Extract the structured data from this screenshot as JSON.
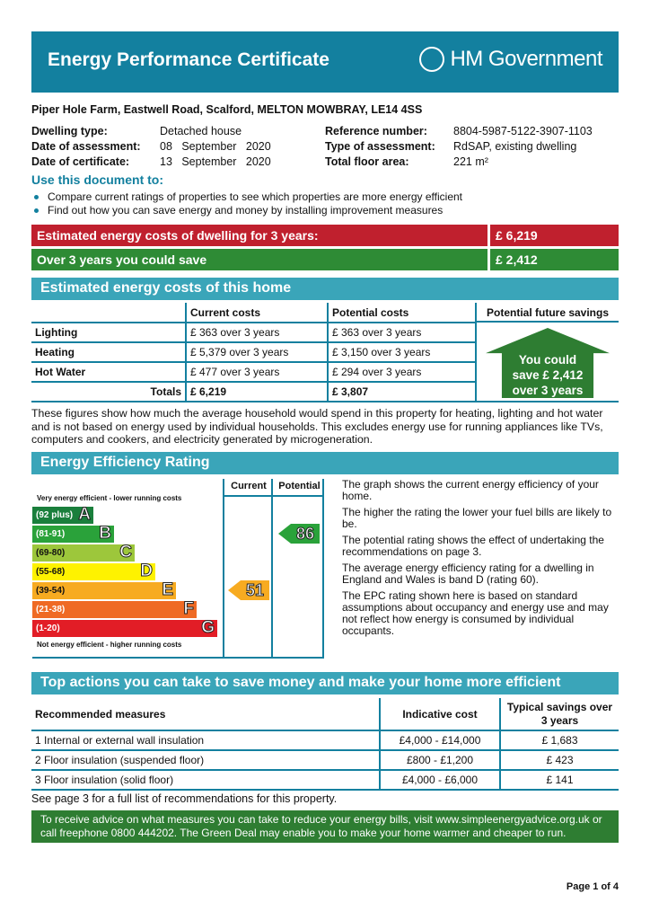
{
  "header": {
    "title": "Energy Performance Certificate",
    "logo_text": "HM Government"
  },
  "address": "Piper Hole Farm, Eastwell Road, Scalford, MELTON MOWBRAY, LE14 4SS",
  "details": {
    "left": [
      {
        "label": "Dwelling type:",
        "value": "Detached house"
      },
      {
        "label": "Date of assessment:",
        "value": "08   September   2020"
      },
      {
        "label": "Date of certificate:",
        "value": "13   September   2020"
      }
    ],
    "right": [
      {
        "label": "Reference number:",
        "value": "8804-5987-5122-3907-1103"
      },
      {
        "label": "Type of assessment:",
        "value": "RdSAP, existing dwelling"
      },
      {
        "label": "Total floor area:",
        "value": "221 m²"
      }
    ]
  },
  "use": {
    "heading": "Use this document to:",
    "bullets": [
      "Compare current ratings of properties to see which properties are more energy efficient",
      "Find out how you can save energy and money by installing improvement measures"
    ]
  },
  "summary": [
    {
      "label": "Estimated energy costs of dwelling for 3 years:",
      "value": "£ 6,219",
      "color": "#c0202e"
    },
    {
      "label": "Over 3 years you could save",
      "value": "£ 2,412",
      "color": "#2e8b35"
    }
  ],
  "costs": {
    "heading": "Estimated energy costs of this home",
    "columns": [
      "",
      "Current costs",
      "Potential costs",
      "Potential future savings"
    ],
    "rows": [
      [
        "Lighting",
        "£ 363 over 3 years",
        "£ 363 over 3 years"
      ],
      [
        "Heating",
        "£ 5,379 over 3 years",
        "£ 3,150 over 3 years"
      ],
      [
        "Hot Water",
        "£ 477 over 3 years",
        "£ 294 over 3 years"
      ]
    ],
    "totals": [
      "Totals",
      "£ 6,219",
      "£ 3,807"
    ],
    "savings_badge": [
      "You could",
      "save £ 2,412",
      "over 3 years"
    ]
  },
  "costs_note": "These figures show how much the average household would spend in this property for heating, lighting and hot water and is not based on energy used by individual households. This excludes energy use for running appliances like TVs, computers and cookers, and electricity generated by microgeneration.",
  "eer": {
    "heading": "Energy Efficiency Rating",
    "top_label": "Very energy efficient - lower running costs",
    "bottom_label": "Not energy efficient - higher running costs",
    "col_current": "Current",
    "col_potential": "Potential",
    "bands": [
      {
        "range": "(92 plus)",
        "letter": "A",
        "color": "#1a7f3c"
      },
      {
        "range": "(81-91)",
        "letter": "B",
        "color": "#2aa23a"
      },
      {
        "range": "(69-80)",
        "letter": "C",
        "color": "#9dc73b"
      },
      {
        "range": "(55-68)",
        "letter": "D",
        "color": "#fef200"
      },
      {
        "range": "(39-54)",
        "letter": "E",
        "color": "#f7ab21"
      },
      {
        "range": "(21-38)",
        "letter": "F",
        "color": "#ef6a24"
      },
      {
        "range": "(1-20)",
        "letter": "G",
        "color": "#e21d26"
      }
    ],
    "current": {
      "value": "51",
      "band": "E"
    },
    "potential": {
      "value": "86",
      "band": "B"
    },
    "notes": [
      "The graph shows the current energy efficiency of your home.",
      "The higher the rating the lower your fuel bills are likely to be.",
      "The potential rating shows the effect of undertaking the recommendations on page 3.",
      "The average energy efficiency rating for a dwelling in England and Wales is band D (rating 60).",
      "The EPC rating shown here is based on standard assumptions about occupancy and energy use and may not reflect how energy is consumed by individual occupants."
    ]
  },
  "actions": {
    "heading": "Top actions you can take to save money and make your home more efficient",
    "columns": [
      "Recommended measures",
      "Indicative cost",
      "Typical savings over 3 years"
    ],
    "rows": [
      [
        "1  Internal or external wall insulation",
        "£4,000 - £14,000",
        "£ 1,683"
      ],
      [
        "2  Floor insulation (suspended floor)",
        "£800 - £1,200",
        "£ 423"
      ],
      [
        "3  Floor insulation (solid floor)",
        "£4,000 - £6,000",
        "£ 141"
      ]
    ],
    "note": "See page 3 for a full list of recommendations for this property."
  },
  "advice": "To receive advice on what measures you can take to reduce your energy bills, visit www.simpleenergyadvice.org.uk or call freephone 0800 444202. The Green Deal may enable you to make your home warmer and cheaper to run.",
  "footer": {
    "page": "Page 1 of 4"
  }
}
